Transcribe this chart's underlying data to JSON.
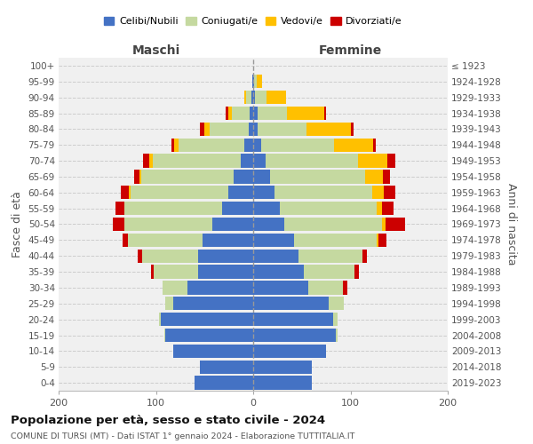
{
  "age_groups": [
    "0-4",
    "5-9",
    "10-14",
    "15-19",
    "20-24",
    "25-29",
    "30-34",
    "35-39",
    "40-44",
    "45-49",
    "50-54",
    "55-59",
    "60-64",
    "65-69",
    "70-74",
    "75-79",
    "80-84",
    "85-89",
    "90-94",
    "95-99",
    "100+"
  ],
  "birth_years": [
    "2019-2023",
    "2014-2018",
    "2009-2013",
    "2004-2008",
    "1999-2003",
    "1994-1998",
    "1989-1993",
    "1984-1988",
    "1979-1983",
    "1974-1978",
    "1969-1973",
    "1964-1968",
    "1959-1963",
    "1954-1958",
    "1949-1953",
    "1944-1948",
    "1939-1943",
    "1934-1938",
    "1929-1933",
    "1924-1928",
    "≤ 1923"
  ],
  "colors": {
    "single": "#4472c4",
    "married": "#c5d9a0",
    "widowed": "#ffc000",
    "divorced": "#cc0000"
  },
  "males": {
    "single": [
      60,
      55,
      82,
      90,
      95,
      82,
      68,
      57,
      57,
      52,
      42,
      32,
      26,
      20,
      13,
      9,
      5,
      4,
      2,
      1,
      0
    ],
    "married": [
      0,
      0,
      0,
      1,
      2,
      8,
      25,
      45,
      57,
      77,
      90,
      100,
      100,
      95,
      90,
      68,
      40,
      18,
      5,
      0,
      0
    ],
    "widowed": [
      0,
      0,
      0,
      0,
      0,
      0,
      0,
      0,
      0,
      0,
      0,
      0,
      2,
      2,
      4,
      4,
      5,
      4,
      2,
      0,
      0
    ],
    "divorced": [
      0,
      0,
      0,
      0,
      0,
      0,
      0,
      3,
      5,
      5,
      12,
      10,
      8,
      5,
      6,
      3,
      5,
      2,
      0,
      0,
      0
    ]
  },
  "females": {
    "single": [
      60,
      60,
      75,
      85,
      82,
      78,
      57,
      52,
      47,
      42,
      32,
      27,
      22,
      17,
      13,
      8,
      5,
      5,
      2,
      1,
      0
    ],
    "married": [
      0,
      0,
      0,
      2,
      5,
      15,
      35,
      52,
      65,
      85,
      100,
      100,
      100,
      98,
      95,
      75,
      50,
      30,
      12,
      3,
      0
    ],
    "widowed": [
      0,
      0,
      0,
      0,
      0,
      0,
      0,
      0,
      0,
      2,
      4,
      5,
      12,
      18,
      30,
      40,
      45,
      38,
      20,
      5,
      0
    ],
    "divorced": [
      0,
      0,
      0,
      0,
      0,
      0,
      5,
      5,
      5,
      8,
      20,
      12,
      12,
      8,
      8,
      3,
      3,
      2,
      0,
      0,
      0
    ]
  },
  "xlim": 200,
  "title": "Popolazione per età, sesso e stato civile - 2024",
  "subtitle": "COMUNE DI TURSI (MT) - Dati ISTAT 1° gennaio 2024 - Elaborazione TUTTITALIA.IT",
  "xlabel_left": "Maschi",
  "xlabel_right": "Femmine",
  "ylabel": "Fasce di età",
  "ylabel_right": "Anni di nascita",
  "legend_labels": [
    "Celibi/Nubili",
    "Coniugati/e",
    "Vedovi/e",
    "Divorziati/e"
  ],
  "bg_color": "#f0f0f0"
}
